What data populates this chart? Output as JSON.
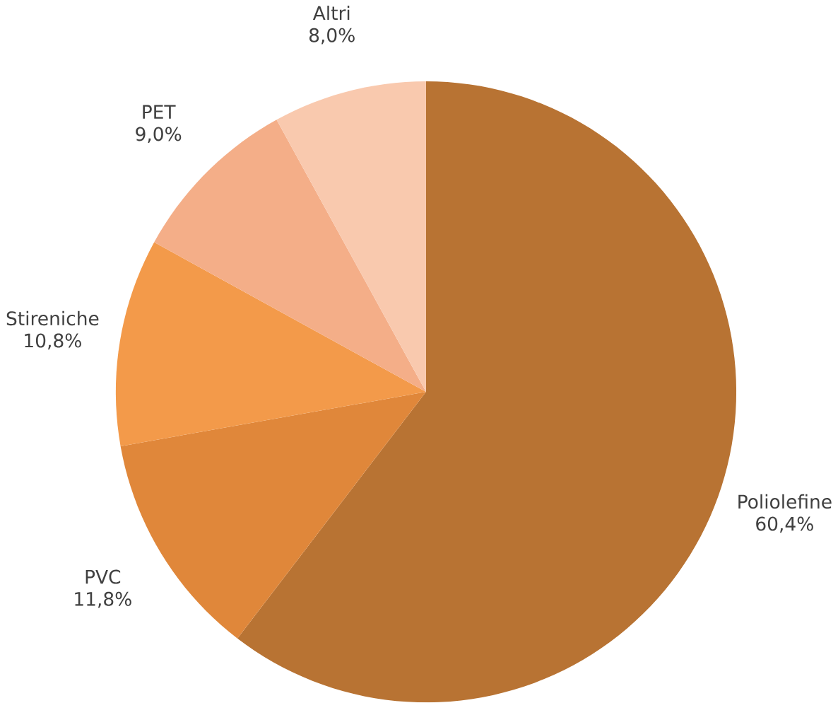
{
  "chart_data": {
    "type": "pie",
    "categories": [
      "Poliolefine",
      "PVC",
      "Stireniche",
      "PET",
      "Altri"
    ],
    "values": [
      60.4,
      11.8,
      10.8,
      9.0,
      8.0
    ],
    "value_labels": [
      "60,4%",
      "11,8%",
      "10,8%",
      "9,0%",
      "8,0%"
    ],
    "colors": [
      "#b87333",
      "#e0873a",
      "#f39a4a",
      "#f4ae88",
      "#f9c9ae"
    ]
  }
}
